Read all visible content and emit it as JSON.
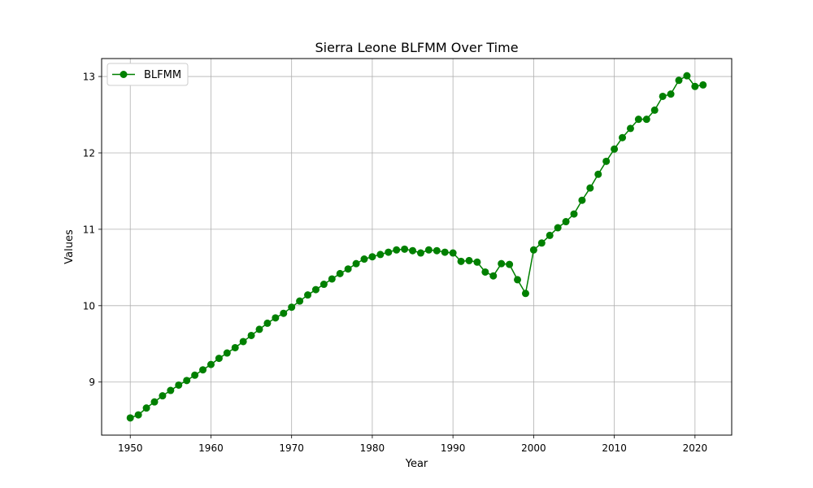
{
  "chart_data": {
    "type": "line",
    "title": "Sierra Leone BLFMM Over Time",
    "xlabel": "Year",
    "ylabel": "Values",
    "xlim": [
      1946.45,
      2024.55
    ],
    "ylim": [
      8.305,
      13.235
    ],
    "x_ticks": [
      1950,
      1960,
      1970,
      1980,
      1990,
      2000,
      2010,
      2020
    ],
    "y_ticks": [
      9,
      10,
      11,
      12,
      13
    ],
    "grid": true,
    "legend_position": "upper-left",
    "series": [
      {
        "name": "BLFMM",
        "color": "#008000",
        "marker": "circle",
        "x": [
          1950,
          1951,
          1952,
          1953,
          1954,
          1955,
          1956,
          1957,
          1958,
          1959,
          1960,
          1961,
          1962,
          1963,
          1964,
          1965,
          1966,
          1967,
          1968,
          1969,
          1970,
          1971,
          1972,
          1973,
          1974,
          1975,
          1976,
          1977,
          1978,
          1979,
          1980,
          1981,
          1982,
          1983,
          1984,
          1985,
          1986,
          1987,
          1988,
          1989,
          1990,
          1991,
          1992,
          1993,
          1994,
          1995,
          1996,
          1997,
          1998,
          1999,
          2000,
          2001,
          2002,
          2003,
          2004,
          2005,
          2006,
          2007,
          2008,
          2009,
          2010,
          2011,
          2012,
          2013,
          2014,
          2015,
          2016,
          2017,
          2018,
          2019,
          2020,
          2021
        ],
        "values": [
          8.53,
          8.57,
          8.66,
          8.74,
          8.82,
          8.89,
          8.96,
          9.02,
          9.09,
          9.16,
          9.23,
          9.31,
          9.38,
          9.45,
          9.53,
          9.61,
          9.69,
          9.77,
          9.84,
          9.9,
          9.98,
          10.06,
          10.14,
          10.21,
          10.28,
          10.35,
          10.42,
          10.48,
          10.55,
          10.61,
          10.64,
          10.67,
          10.7,
          10.73,
          10.74,
          10.72,
          10.69,
          10.73,
          10.72,
          10.7,
          10.69,
          10.58,
          10.59,
          10.57,
          10.44,
          10.39,
          10.55,
          10.54,
          10.34,
          10.16,
          10.73,
          10.82,
          10.92,
          11.02,
          11.1,
          11.2,
          11.38,
          11.54,
          11.72,
          11.89,
          12.05,
          12.2,
          12.32,
          12.44,
          12.44,
          12.56,
          12.74,
          12.77,
          12.95,
          13.01,
          12.87,
          12.89
        ]
      }
    ]
  }
}
